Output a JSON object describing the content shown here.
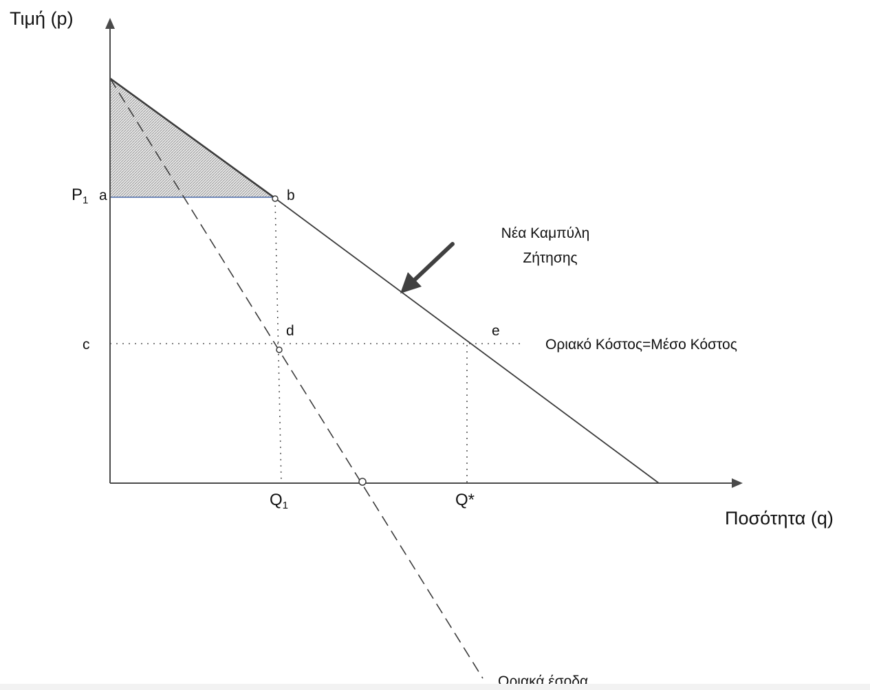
{
  "axes": {
    "y_title": "Τιμή (p)",
    "x_title": "Ποσότητα (q)"
  },
  "prices": {
    "p1": {
      "main": "P",
      "sub": "1"
    },
    "c_label": "c"
  },
  "quantities": {
    "q1": {
      "main": "Q",
      "sub": "1"
    },
    "q_star": "Q*"
  },
  "points": {
    "a": "a",
    "b": "b",
    "d": "d",
    "e": "e"
  },
  "annotations": {
    "demand_line1": "Νέα Καμπύλη",
    "demand_line2": "Ζήτησης",
    "cost": "Οριακό Κόστος=Μέσο Κόστος",
    "marginal_revenue": "Οριακά έσοδα"
  },
  "colors": {
    "axis": "#4a4a4a",
    "demand": "#3a3a3a",
    "price_line": "#4a6aa8",
    "shade": "#d9d9d9",
    "arrow": "#404040"
  }
}
